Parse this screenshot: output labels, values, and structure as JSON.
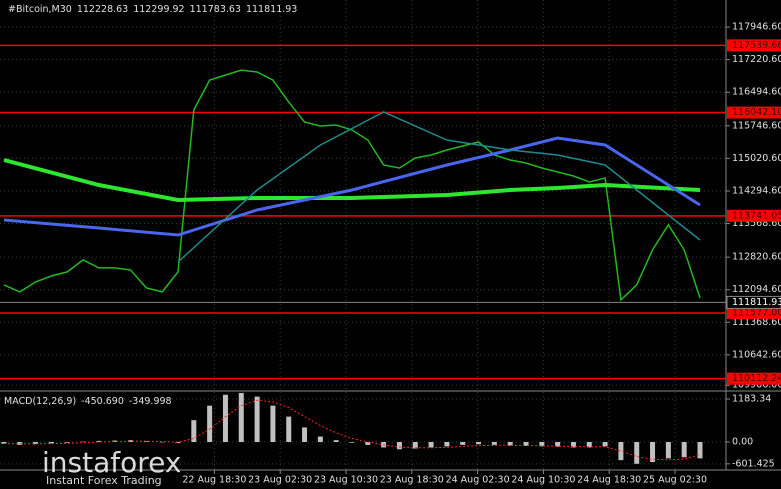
{
  "chart_data": [
    {
      "type": "line",
      "symbol": "#Bitcoin,M30",
      "open": 112228.63,
      "high": 112299.92,
      "low": 111783.63,
      "close": 111811.93,
      "ylim": [
        109860,
        118550
      ],
      "yticks": [
        {
          "value": 117946.6,
          "label": "117946.60"
        },
        {
          "value": 117220.6,
          "label": "117220.60"
        },
        {
          "value": 116494.6,
          "label": "116494.60"
        },
        {
          "value": 115746.6,
          "label": "115746.60"
        },
        {
          "value": 115020.6,
          "label": "115020.60"
        },
        {
          "value": 114294.6,
          "label": "114294.60"
        },
        {
          "value": 113568.6,
          "label": "113568.60"
        },
        {
          "value": 112820.6,
          "label": "112820.60"
        },
        {
          "value": 112094.6,
          "label": "112094.60"
        },
        {
          "value": 111368.6,
          "label": "111368.60"
        },
        {
          "value": 110642.6,
          "label": "110642.60"
        },
        109966.06
      ],
      "levels": [
        117539.66,
        {
          "value": 116042.1,
          "label": "116042.10"
        },
        113741.05,
        {
          "value": 111577.0,
          "label": "111577.00"
        },
        110112.24
      ],
      "level_color": "#ff0000",
      "xticks": [
        {
          "value": 13.3,
          "label": "22 Aug 18:30"
        },
        {
          "value": 17.46,
          "label": "23 Aug 02:30"
        },
        {
          "value": 21.62,
          "label": "23 Aug 10:30"
        },
        {
          "value": 25.78,
          "label": "23 Aug 18:30"
        },
        {
          "value": 29.94,
          "label": "24 Aug 02:30"
        },
        {
          "value": 34.1,
          "label": "24 Aug 10:30"
        },
        {
          "value": 38.26,
          "label": "24 Aug 18:30"
        },
        {
          "value": 42.42,
          "label": "25 Aug 02:30"
        }
      ],
      "grid": true,
      "series": [
        {
          "color": "#22b822",
          "width": 1.5,
          "values": [
            112201,
            112045,
            112268,
            112402,
            112491,
            112758,
            112580,
            112580,
            112535,
            112134,
            112045,
            112491,
            116098,
            116766,
            116878,
            116989,
            116945,
            116766,
            116276,
            115831,
            115742,
            115764,
            115653,
            115430,
            114873,
            114807,
            115029,
            115096,
            115208,
            115297,
            115386,
            115096,
            114985,
            114918,
            114807,
            114718,
            114629,
            114495,
            114584,
            111867,
            112201,
            112981,
            113541,
            112981,
            111912
          ]
        },
        {
          "color": "#2ee62e",
          "width": 4,
          "x": [
            0,
            6,
            11,
            16,
            22,
            28,
            32,
            35,
            38,
            44
          ],
          "values": [
            114985,
            114428,
            114094,
            114139,
            114139,
            114206,
            114317,
            114361,
            114428,
            114317
          ]
        },
        {
          "color": "#4a66f0",
          "width": 3,
          "x": [
            0,
            6,
            11,
            16,
            22,
            28,
            32,
            35,
            38,
            44
          ],
          "values": [
            113649,
            113470,
            113314,
            113871,
            114317,
            114873,
            115208,
            115475,
            115319,
            113983
          ]
        },
        {
          "color": "#1f8a8a",
          "width": 1.5,
          "x": [
            11,
            16,
            20,
            24,
            28,
            32,
            35,
            38,
            44
          ],
          "values": [
            112713,
            114317,
            115319,
            116054,
            115430,
            115208,
            115096,
            114873,
            113203
          ]
        }
      ]
    },
    {
      "type": "bar",
      "title": "MACD(12,26,9)",
      "readout": [
        {
          "value": -450.69,
          "label": "-450.690"
        },
        -349.998
      ],
      "ylim": [
        -743,
        1376
      ],
      "yticks": [
        1183.34,
        {
          "value": 0,
          "label": "0.00"
        },
        -601.425
      ],
      "series": [
        {
          "type": "bar",
          "color": "#c0c0c0",
          "values": [
            -50,
            -80,
            -60,
            -40,
            -20,
            10,
            30,
            40,
            50,
            20,
            -10,
            -30,
            600,
            1000,
            1300,
            1350,
            1250,
            1000,
            700,
            400,
            150,
            50,
            -20,
            -80,
            -150,
            -200,
            -180,
            -150,
            -120,
            -80,
            -60,
            -80,
            -100,
            -110,
            -120,
            -130,
            -150,
            -150,
            -120,
            -500,
            -600,
            -550,
            -450,
            -420,
            -450.69
          ]
        },
        {
          "type": "line",
          "color": "#ff2020",
          "values": [
            -40,
            -50,
            -50,
            -45,
            -35,
            -20,
            0,
            15,
            25,
            25,
            10,
            -5,
            100,
            350,
            700,
            1000,
            1150,
            1100,
            950,
            700,
            450,
            250,
            100,
            0,
            -80,
            -140,
            -160,
            -160,
            -145,
            -120,
            -100,
            -90,
            -90,
            -95,
            -105,
            -115,
            -125,
            -135,
            -130,
            -250,
            -400,
            -480,
            -490,
            -470,
            -349.998
          ]
        }
      ]
    }
  ],
  "watermark": {
    "brand": "instaforex",
    "tagline": "Instant Forex Trading"
  }
}
